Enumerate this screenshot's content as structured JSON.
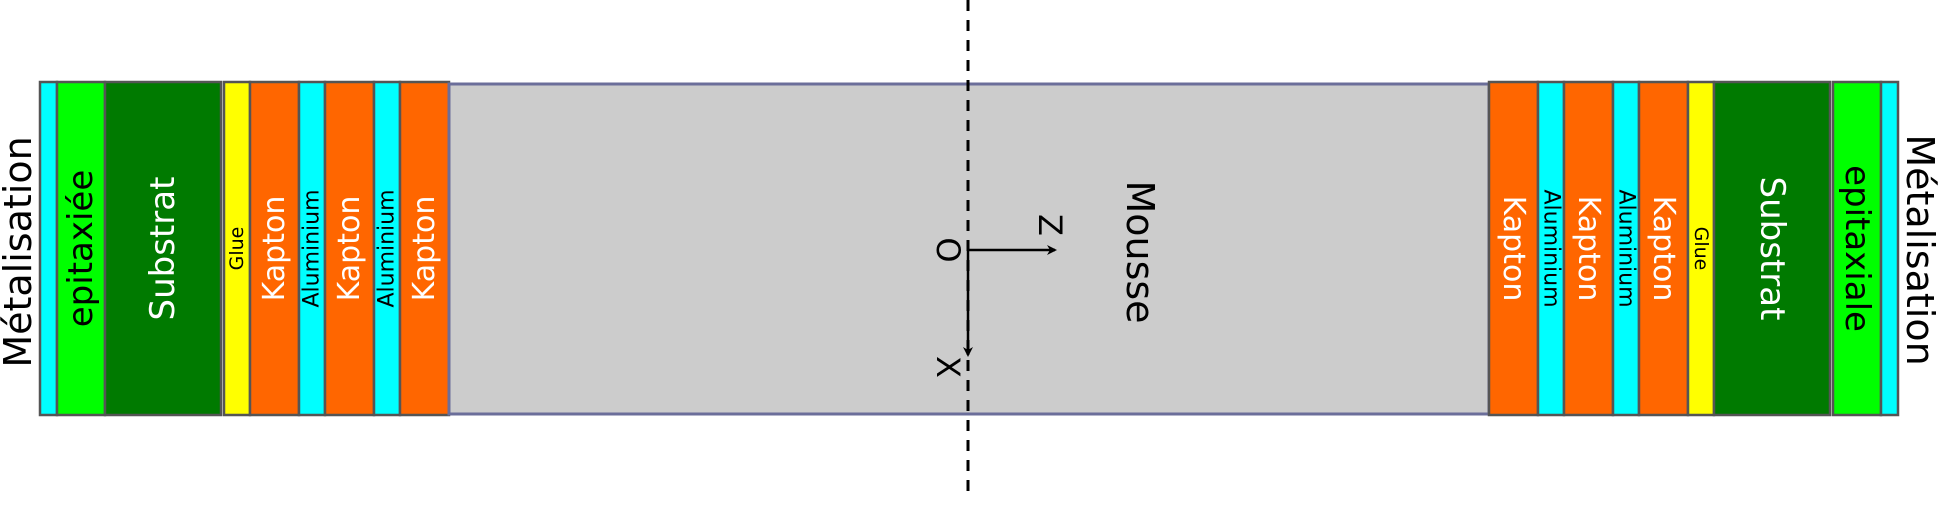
{
  "diagram": {
    "outer_label_left": "Métalisation",
    "outer_label_right": "Métalisation",
    "left_stack": [
      {
        "kind": "metal",
        "label": "",
        "color": "#00ffff"
      },
      {
        "kind": "epi",
        "label": "epitaxiée",
        "color": "#00ff00",
        "text_color": "#000000"
      },
      {
        "kind": "substrat",
        "label": "Substrat",
        "color": "#007a00",
        "text_color": "#ffffff"
      },
      {
        "kind": "glue",
        "label": "Glue",
        "color": "#ffff00",
        "text_color": "#000000"
      },
      {
        "kind": "kapton",
        "label": "Kapton",
        "color": "#ff6600",
        "text_color": "#ffffff"
      },
      {
        "kind": "alu",
        "label": "Aluminium",
        "color": "#00ffff",
        "text_color": "#000000"
      },
      {
        "kind": "kapton",
        "label": "Kapton",
        "color": "#ff6600",
        "text_color": "#ffffff"
      },
      {
        "kind": "alu",
        "label": "Aluminium",
        "color": "#00ffff",
        "text_color": "#000000"
      },
      {
        "kind": "kapton",
        "label": "Kapton",
        "color": "#ff6600",
        "text_color": "#ffffff"
      }
    ],
    "foam": {
      "label": "Mousse",
      "color": "#cccccc",
      "border": "#6b6e9a",
      "text_color": "#000000"
    },
    "right_stack": [
      {
        "kind": "kapton",
        "label": "Kapton",
        "color": "#ff6600",
        "text_color": "#ffffff"
      },
      {
        "kind": "alu",
        "label": "Aluminium",
        "color": "#00ffff",
        "text_color": "#000000"
      },
      {
        "kind": "kapton",
        "label": "Kapton",
        "color": "#ff6600",
        "text_color": "#ffffff"
      },
      {
        "kind": "alu",
        "label": "Aluminium",
        "color": "#00ffff",
        "text_color": "#000000"
      },
      {
        "kind": "kapton",
        "label": "Kapton",
        "color": "#ff6600",
        "text_color": "#ffffff"
      },
      {
        "kind": "glue",
        "label": "Glue",
        "color": "#ffff00",
        "text_color": "#000000"
      },
      {
        "kind": "substrat",
        "label": "Substrat",
        "color": "#007a00",
        "text_color": "#ffffff"
      },
      {
        "kind": "epi",
        "label": "epitaxiale",
        "color": "#00ff00",
        "text_color": "#000000"
      },
      {
        "kind": "metal",
        "label": "",
        "color": "#00ffff"
      }
    ],
    "axes": {
      "origin": "O",
      "z": "Z",
      "x": "X"
    },
    "layer_border": "#555555"
  }
}
